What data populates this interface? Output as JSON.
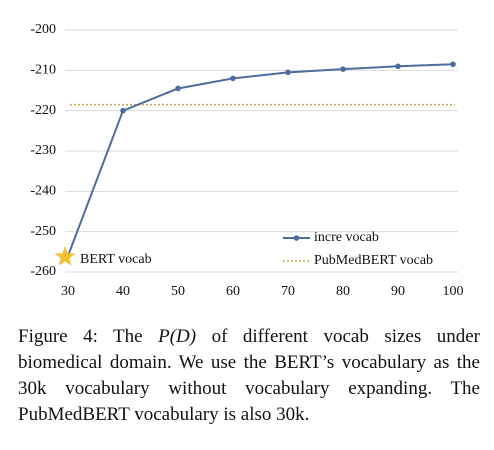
{
  "chart_data": {
    "type": "line",
    "x": [
      30,
      40,
      50,
      60,
      70,
      80,
      90,
      100
    ],
    "series": [
      {
        "name": "incre vocab",
        "color": "#4e6d9c",
        "values": [
          -256,
          -220,
          -214.5,
          -212,
          -210.5,
          -209.7,
          -209,
          -208.5
        ]
      }
    ],
    "hlines": [
      {
        "name": "PubMedBERT vocab",
        "value": -218.5,
        "color": "#c9a650"
      }
    ],
    "annotations": [
      {
        "text": "BERT vocab",
        "x": 30,
        "y": -256,
        "color": "#f2c12e"
      }
    ],
    "xlim": [
      30,
      100
    ],
    "xticks": [
      30,
      40,
      50,
      60,
      70,
      80,
      90,
      100
    ],
    "ylim": [
      -260,
      -200
    ],
    "yticks": [
      -200,
      -210,
      -220,
      -230,
      -240,
      -250,
      -260
    ],
    "grid": true,
    "legend": "lower right"
  },
  "caption": {
    "label": "Figure 4:",
    "before": "The",
    "math": "P(D)",
    "after": "of different vocab sizes under biomedical domain. We use the BERT’s vocabulary as the 30k vocabulary without vocabulary expanding. The PubMedBERT vocabulary is also 30k."
  }
}
